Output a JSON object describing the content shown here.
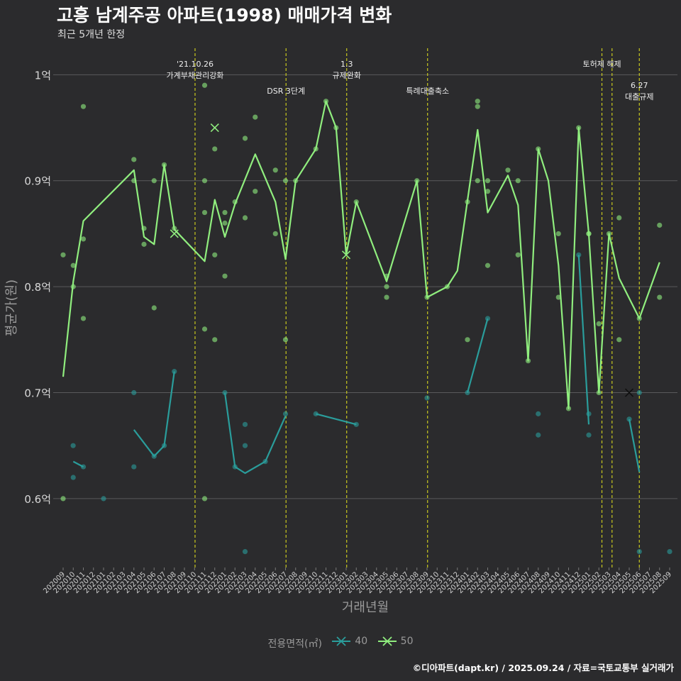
{
  "header": {
    "title": "고흥 남계주공 아파트(1998) 매매가격 변화",
    "subtitle": "최근 5개년 한정"
  },
  "footer": {
    "credit": "©디아파트(dapt.kr) / 2025.09.24 / 자료=국토교통부 실거래가"
  },
  "legend": {
    "title": "전용면적(㎡)",
    "items": [
      {
        "label": "40",
        "color": "#2a9d9b"
      },
      {
        "label": "50",
        "color": "#90ee7e"
      }
    ]
  },
  "chart_data": {
    "type": "line",
    "xlabel": "거래년월",
    "ylabel": "평균가(원)",
    "ylim": [
      0.535,
      1.025
    ],
    "y_ticks": [
      0.6,
      0.7,
      0.8,
      0.9,
      1.0
    ],
    "y_tick_labels": [
      "0.6억",
      "0.7억",
      "0.8억",
      "0.9억",
      "1억"
    ],
    "grid": true,
    "legend_position": "bottom",
    "categories": [
      "202009",
      "202010",
      "202011",
      "202012",
      "202101",
      "202102",
      "202103",
      "202104",
      "202105",
      "202106",
      "202107",
      "202108",
      "202109",
      "202110",
      "202111",
      "202112",
      "202201",
      "202202",
      "202203",
      "202204",
      "202205",
      "202206",
      "202207",
      "202208",
      "202209",
      "202210",
      "202211",
      "202212",
      "202301",
      "202302",
      "202303",
      "202304",
      "202305",
      "202306",
      "202307",
      "202308",
      "202309",
      "202310",
      "202311",
      "202312",
      "202401",
      "202402",
      "202403",
      "202404",
      "202405",
      "202406",
      "202407",
      "202408",
      "202409",
      "202410",
      "202411",
      "202412",
      "202501",
      "202502",
      "202503",
      "202504",
      "202505",
      "202506",
      "202507",
      "202508",
      "202509"
    ],
    "events": [
      {
        "x": 13.05,
        "label": [
          "'21.10.26",
          "가계부채관리강화"
        ],
        "row": 0
      },
      {
        "x": 22.05,
        "label": [
          "DSR 3단계"
        ],
        "row": 1
      },
      {
        "x": 28.05,
        "label": [
          "1.3",
          "규제완화"
        ],
        "row": 0
      },
      {
        "x": 36.05,
        "label": [
          "특례대출축소"
        ],
        "row": 1
      },
      {
        "x": 53.3,
        "label": [
          "토허제 해제"
        ],
        "row": 0
      },
      {
        "x": 54.3,
        "label": [],
        "row": 0
      },
      {
        "x": 57.0,
        "label": [
          "6.27",
          "대출규제"
        ],
        "row": 1
      }
    ],
    "series": [
      {
        "name": "40",
        "color": "#2a9d9b",
        "segments": [
          [
            [
              1,
              0.635
            ],
            [
              2,
              0.63
            ]
          ],
          [
            [
              7,
              0.665
            ],
            [
              9,
              0.64
            ],
            [
              10,
              0.65
            ],
            [
              11,
              0.72
            ]
          ],
          [
            [
              16,
              0.7
            ],
            [
              17,
              0.63
            ],
            [
              18,
              0.624
            ],
            [
              20,
              0.635
            ],
            [
              22,
              0.678
            ]
          ],
          [
            [
              25,
              0.68
            ],
            [
              29,
              0.67
            ]
          ],
          [
            [
              40,
              0.7
            ],
            [
              42,
              0.77
            ]
          ],
          [
            [
              51,
              0.83
            ],
            [
              52,
              0.67
            ]
          ],
          [
            [
              56,
              0.675
            ],
            [
              57,
              0.625
            ]
          ]
        ],
        "points": [
          [
            0.99,
            0.65
          ],
          [
            1,
            0.62
          ],
          [
            2,
            0.63
          ],
          [
            4,
            0.6
          ],
          [
            7,
            0.7
          ],
          [
            7,
            0.63
          ],
          [
            9,
            0.64
          ],
          [
            10,
            0.65
          ],
          [
            11,
            0.72
          ],
          [
            16,
            0.7
          ],
          [
            17,
            0.63
          ],
          [
            18,
            0.67
          ],
          [
            18,
            0.65
          ],
          [
            18,
            0.55
          ],
          [
            20,
            0.635
          ],
          [
            22,
            0.68
          ],
          [
            25,
            0.68
          ],
          [
            29,
            0.67
          ],
          [
            36,
            0.695
          ],
          [
            40,
            0.7
          ],
          [
            42,
            0.77
          ],
          [
            47,
            0.68
          ],
          [
            47,
            0.66
          ],
          [
            51,
            0.83
          ],
          [
            52,
            0.68
          ],
          [
            52,
            0.66
          ],
          [
            56,
            0.675
          ],
          [
            57,
            0.7
          ],
          [
            57,
            0.55
          ],
          [
            60,
            0.55
          ]
        ],
        "crosses": [
          [
            56,
            0.7
          ]
        ]
      },
      {
        "name": "50",
        "color": "#90ee7e",
        "segments": [
          [
            [
              0,
              0.715
            ],
            [
              1,
              0.805
            ],
            [
              2,
              0.862
            ],
            [
              7,
              0.91
            ],
            [
              8,
              0.847
            ],
            [
              9,
              0.84
            ],
            [
              10,
              0.915
            ],
            [
              11,
              0.854
            ],
            [
              14,
              0.824
            ],
            [
              15,
              0.882
            ],
            [
              16,
              0.847
            ],
            [
              17,
              0.878
            ],
            [
              19,
              0.925
            ],
            [
              21,
              0.88
            ],
            [
              22,
              0.826
            ],
            [
              23,
              0.9
            ],
            [
              25,
              0.93
            ],
            [
              26,
              0.975
            ],
            [
              27,
              0.95
            ],
            [
              28,
              0.83
            ],
            [
              29,
              0.88
            ],
            [
              32,
              0.805
            ],
            [
              35,
              0.9
            ],
            [
              36,
              0.79
            ],
            [
              38,
              0.8
            ],
            [
              39,
              0.815
            ],
            [
              41,
              0.948
            ],
            [
              42,
              0.87
            ],
            [
              44,
              0.905
            ],
            [
              45,
              0.877
            ],
            [
              46,
              0.73
            ],
            [
              47,
              0.93
            ],
            [
              48,
              0.9
            ],
            [
              49,
              0.82
            ],
            [
              50,
              0.685
            ],
            [
              51,
              0.95
            ],
            [
              52,
              0.85
            ],
            [
              53,
              0.7
            ],
            [
              54,
              0.85
            ],
            [
              55,
              0.808
            ],
            [
              57,
              0.77
            ],
            [
              59,
              0.823
            ]
          ]
        ],
        "points": [
          [
            0,
            0.83
          ],
          [
            0,
            0.6
          ],
          [
            1,
            0.82
          ],
          [
            1,
            0.8
          ],
          [
            2,
            0.97
          ],
          [
            2,
            0.845
          ],
          [
            2,
            0.77
          ],
          [
            7,
            0.92
          ],
          [
            7,
            0.9
          ],
          [
            8,
            0.855
          ],
          [
            8,
            0.84
          ],
          [
            9,
            0.9
          ],
          [
            9,
            0.78
          ],
          [
            10,
            0.915
          ],
          [
            11,
            0.855
          ],
          [
            14,
            0.99
          ],
          [
            14,
            0.9
          ],
          [
            14,
            0.87
          ],
          [
            14,
            0.76
          ],
          [
            14,
            0.6
          ],
          [
            15,
            0.93
          ],
          [
            15,
            0.83
          ],
          [
            15,
            0.75
          ],
          [
            16,
            0.87
          ],
          [
            16,
            0.86
          ],
          [
            16,
            0.81
          ],
          [
            17,
            0.88
          ],
          [
            18,
            0.94
          ],
          [
            18,
            0.865
          ],
          [
            19,
            0.96
          ],
          [
            19,
            0.89
          ],
          [
            21,
            0.91
          ],
          [
            21,
            0.85
          ],
          [
            22,
            0.9
          ],
          [
            22,
            0.75
          ],
          [
            23,
            0.9
          ],
          [
            25,
            0.93
          ],
          [
            26,
            0.975
          ],
          [
            27,
            0.95
          ],
          [
            29,
            0.88
          ],
          [
            32,
            0.81
          ],
          [
            32,
            0.8
          ],
          [
            32,
            0.79
          ],
          [
            35,
            0.9
          ],
          [
            36,
            0.79
          ],
          [
            38,
            0.8
          ],
          [
            40,
            0.88
          ],
          [
            40,
            0.75
          ],
          [
            41,
            0.975
          ],
          [
            41,
            0.97
          ],
          [
            41,
            0.9
          ],
          [
            42,
            0.9
          ],
          [
            42,
            0.89
          ],
          [
            42,
            0.82
          ],
          [
            44,
            0.91
          ],
          [
            45,
            0.9
          ],
          [
            45,
            0.83
          ],
          [
            46,
            0.73
          ],
          [
            47,
            0.93
          ],
          [
            49,
            0.85
          ],
          [
            49,
            0.79
          ],
          [
            50,
            0.685
          ],
          [
            51,
            0.95
          ],
          [
            52,
            0.85
          ],
          [
            52,
            0.85
          ],
          [
            53,
            0.7
          ],
          [
            53,
            0.765
          ],
          [
            54,
            0.85
          ],
          [
            55,
            0.865
          ],
          [
            55,
            0.75
          ],
          [
            57,
            0.77
          ],
          [
            59,
            0.858
          ],
          [
            59,
            0.79
          ]
        ],
        "crosses": [
          [
            11,
            0.85
          ],
          [
            15,
            0.95
          ],
          [
            28,
            0.83
          ]
        ]
      }
    ]
  }
}
